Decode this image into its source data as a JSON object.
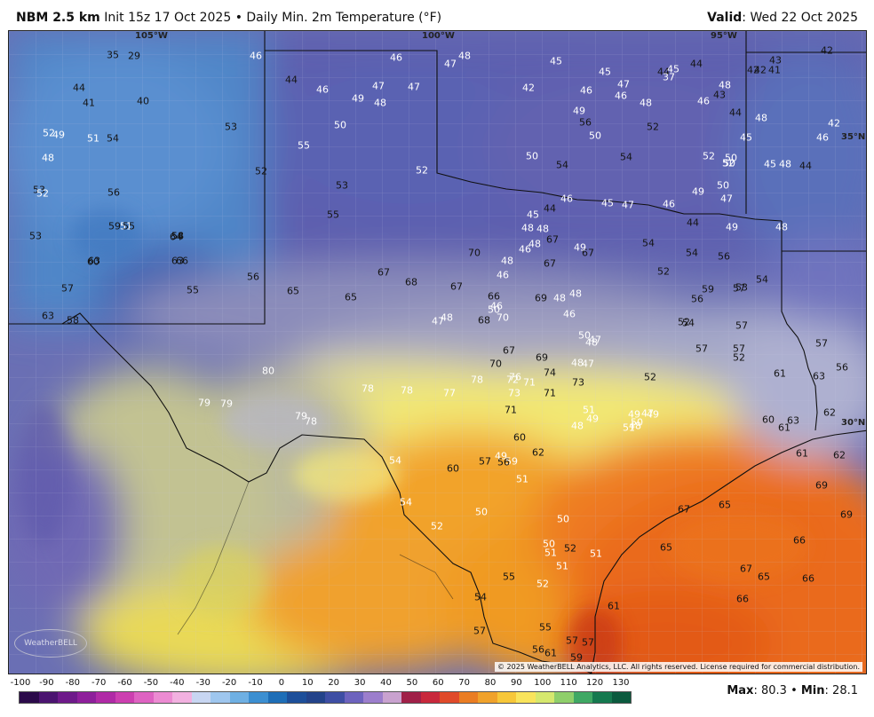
{
  "header": {
    "model": "NBM 2.5 km",
    "init": "Init 15z 17 Oct 2025",
    "field": "Daily Min. 2m Temperature (°F)",
    "bullet": "•",
    "valid_label": "Valid",
    "valid_date": "Wed 22 Oct 2025"
  },
  "map": {
    "grid_labels": [
      "105°W",
      "100°W",
      "95°W",
      "35°N",
      "30°N"
    ],
    "copyright": "© 2025 WeatherBELL Analytics, LLC. All rights reserved. License required for commercial distribution.",
    "logo_text": "WeatherBELL",
    "point_values": [
      {
        "v": "35",
        "c": "k"
      },
      {
        "v": "29",
        "c": "k"
      },
      {
        "v": "46",
        "c": "w"
      },
      {
        "v": "46",
        "c": "w"
      },
      {
        "v": "47",
        "c": "w"
      },
      {
        "v": "48",
        "c": "w"
      },
      {
        "v": "43",
        "c": "k"
      },
      {
        "v": "41",
        "c": "k"
      },
      {
        "v": "42",
        "c": "k"
      },
      {
        "v": "42",
        "c": "k"
      },
      {
        "v": "44",
        "c": "k"
      },
      {
        "v": "41",
        "c": "k"
      },
      {
        "v": "40",
        "c": "k"
      },
      {
        "v": "44",
        "c": "k"
      },
      {
        "v": "46",
        "c": "w"
      },
      {
        "v": "47",
        "c": "w"
      },
      {
        "v": "47",
        "c": "w"
      },
      {
        "v": "49",
        "c": "w"
      },
      {
        "v": "48",
        "c": "w"
      },
      {
        "v": "45",
        "c": "w"
      },
      {
        "v": "45",
        "c": "w"
      },
      {
        "v": "47",
        "c": "w"
      },
      {
        "v": "44",
        "c": "k"
      },
      {
        "v": "45",
        "c": "w"
      },
      {
        "v": "44",
        "c": "k"
      },
      {
        "v": "48",
        "c": "w"
      },
      {
        "v": "37",
        "c": "w"
      },
      {
        "v": "42",
        "c": "w"
      },
      {
        "v": "46",
        "c": "w"
      },
      {
        "v": "46",
        "c": "w"
      },
      {
        "v": "48",
        "c": "w"
      },
      {
        "v": "46",
        "c": "w"
      },
      {
        "v": "43",
        "c": "k"
      },
      {
        "v": "44",
        "c": "k"
      },
      {
        "v": "42",
        "c": "k"
      },
      {
        "v": "48",
        "c": "w"
      },
      {
        "v": "42",
        "c": "w"
      },
      {
        "v": "46",
        "c": "w"
      },
      {
        "v": "44",
        "c": "k"
      },
      {
        "v": "48",
        "c": "w"
      },
      {
        "v": "45",
        "c": "w"
      },
      {
        "v": "45",
        "c": "w"
      },
      {
        "v": "52",
        "c": "w"
      },
      {
        "v": "49",
        "c": "w"
      },
      {
        "v": "48",
        "c": "w"
      },
      {
        "v": "51",
        "c": "w"
      },
      {
        "v": "54",
        "c": "k"
      },
      {
        "v": "53",
        "c": "k"
      },
      {
        "v": "50",
        "c": "w"
      },
      {
        "v": "55",
        "c": "w"
      },
      {
        "v": "53",
        "c": "k"
      },
      {
        "v": "52",
        "c": "k"
      },
      {
        "v": "52",
        "c": "w"
      },
      {
        "v": "50",
        "c": "w"
      },
      {
        "v": "54",
        "c": "k"
      },
      {
        "v": "54",
        "c": "k"
      },
      {
        "v": "52",
        "c": "k"
      },
      {
        "v": "50",
        "c": "w"
      },
      {
        "v": "56",
        "c": "k"
      },
      {
        "v": "49",
        "c": "w"
      },
      {
        "v": "53",
        "c": "k"
      },
      {
        "v": "56",
        "c": "k"
      },
      {
        "v": "59",
        "c": "k"
      },
      {
        "v": "58",
        "c": "k"
      },
      {
        "v": "51",
        "c": "w"
      },
      {
        "v": "54",
        "c": "k"
      },
      {
        "v": "55",
        "c": "k"
      },
      {
        "v": "52",
        "c": "w"
      },
      {
        "v": "53",
        "c": "k"
      },
      {
        "v": "55",
        "c": "k"
      },
      {
        "v": "56",
        "c": "k"
      },
      {
        "v": "55",
        "c": "k"
      },
      {
        "v": "60",
        "c": "k"
      },
      {
        "v": "66",
        "c": "k"
      },
      {
        "v": "63",
        "c": "k"
      },
      {
        "v": "63",
        "c": "k"
      },
      {
        "v": "64",
        "c": "k"
      },
      {
        "v": "57",
        "c": "k"
      },
      {
        "v": "58",
        "c": "k"
      },
      {
        "v": "63",
        "c": "k"
      },
      {
        "v": "65",
        "c": "k"
      },
      {
        "v": "65",
        "c": "k"
      },
      {
        "v": "67",
        "c": "k"
      },
      {
        "v": "68",
        "c": "k"
      },
      {
        "v": "67",
        "c": "k"
      },
      {
        "v": "66",
        "c": "k"
      },
      {
        "v": "70",
        "c": "k"
      },
      {
        "v": "67",
        "c": "k"
      },
      {
        "v": "67",
        "c": "k"
      },
      {
        "v": "67",
        "c": "k"
      },
      {
        "v": "70",
        "c": "w"
      },
      {
        "v": "68",
        "c": "k"
      },
      {
        "v": "69",
        "c": "k"
      },
      {
        "v": "67",
        "c": "k"
      },
      {
        "v": "69",
        "c": "k"
      },
      {
        "v": "70",
        "c": "k"
      },
      {
        "v": "72",
        "c": "w"
      },
      {
        "v": "71",
        "c": "w"
      },
      {
        "v": "73",
        "c": "w"
      },
      {
        "v": "73",
        "c": "k"
      },
      {
        "v": "80",
        "c": "w"
      },
      {
        "v": "79",
        "c": "w"
      },
      {
        "v": "79",
        "c": "w"
      },
      {
        "v": "79",
        "c": "w"
      },
      {
        "v": "78",
        "c": "w"
      },
      {
        "v": "78",
        "c": "w"
      },
      {
        "v": "78",
        "c": "w"
      },
      {
        "v": "77",
        "c": "w"
      },
      {
        "v": "78",
        "c": "w"
      },
      {
        "v": "76",
        "c": "w"
      },
      {
        "v": "74",
        "c": "k"
      },
      {
        "v": "71",
        "c": "k"
      },
      {
        "v": "71",
        "c": "k"
      },
      {
        "v": "60",
        "c": "k"
      },
      {
        "v": "62",
        "c": "k"
      },
      {
        "v": "59",
        "c": "w"
      },
      {
        "v": "60",
        "c": "k"
      },
      {
        "v": "57",
        "c": "k"
      },
      {
        "v": "56",
        "c": "k"
      },
      {
        "v": "54",
        "c": "w"
      },
      {
        "v": "54",
        "c": "w"
      },
      {
        "v": "52",
        "c": "w"
      },
      {
        "v": "50",
        "c": "w"
      },
      {
        "v": "51",
        "c": "w"
      },
      {
        "v": "50",
        "c": "w"
      },
      {
        "v": "50",
        "c": "w"
      },
      {
        "v": "51",
        "c": "w"
      },
      {
        "v": "51",
        "c": "w"
      },
      {
        "v": "52",
        "c": "k"
      },
      {
        "v": "51",
        "c": "w"
      },
      {
        "v": "52",
        "c": "w"
      },
      {
        "v": "54",
        "c": "k"
      },
      {
        "v": "55",
        "c": "k"
      },
      {
        "v": "57",
        "c": "k"
      },
      {
        "v": "56",
        "c": "k"
      },
      {
        "v": "55",
        "c": "k"
      },
      {
        "v": "57",
        "c": "k"
      },
      {
        "v": "57",
        "c": "k"
      },
      {
        "v": "59",
        "c": "k"
      },
      {
        "v": "61",
        "c": "k"
      },
      {
        "v": "61",
        "c": "k"
      },
      {
        "v": "65",
        "c": "k"
      },
      {
        "v": "66",
        "c": "k"
      },
      {
        "v": "65",
        "c": "k"
      },
      {
        "v": "67",
        "c": "k"
      },
      {
        "v": "67",
        "c": "k"
      },
      {
        "v": "65",
        "c": "k"
      },
      {
        "v": "66",
        "c": "k"
      },
      {
        "v": "66",
        "c": "k"
      },
      {
        "v": "69",
        "c": "k"
      },
      {
        "v": "69",
        "c": "k"
      },
      {
        "v": "61",
        "c": "k"
      },
      {
        "v": "62",
        "c": "k"
      },
      {
        "v": "60",
        "c": "k"
      },
      {
        "v": "61",
        "c": "k"
      },
      {
        "v": "63",
        "c": "k"
      },
      {
        "v": "62",
        "c": "k"
      },
      {
        "v": "61",
        "c": "k"
      },
      {
        "v": "63",
        "c": "k"
      },
      {
        "v": "57",
        "c": "k"
      },
      {
        "v": "56",
        "c": "k"
      },
      {
        "v": "57",
        "c": "k"
      },
      {
        "v": "59",
        "c": "k"
      },
      {
        "v": "57",
        "c": "k"
      },
      {
        "v": "56",
        "c": "k"
      },
      {
        "v": "54",
        "c": "k"
      },
      {
        "v": "54",
        "c": "k"
      },
      {
        "v": "52",
        "c": "k"
      },
      {
        "v": "53",
        "c": "k"
      },
      {
        "v": "54",
        "c": "k"
      },
      {
        "v": "56",
        "c": "k"
      },
      {
        "v": "57",
        "c": "k"
      },
      {
        "v": "54",
        "c": "k"
      },
      {
        "v": "57",
        "c": "k"
      },
      {
        "v": "52",
        "c": "k"
      },
      {
        "v": "52",
        "c": "k"
      },
      {
        "v": "52",
        "c": "k"
      },
      {
        "v": "51",
        "c": "w"
      },
      {
        "v": "50",
        "c": "w"
      },
      {
        "v": "49",
        "c": "w"
      },
      {
        "v": "51",
        "c": "w"
      },
      {
        "v": "49",
        "c": "w"
      },
      {
        "v": "49",
        "c": "w"
      },
      {
        "v": "48",
        "c": "w"
      },
      {
        "v": "47",
        "c": "w"
      },
      {
        "v": "49",
        "c": "w"
      },
      {
        "v": "48",
        "c": "w"
      },
      {
        "v": "48",
        "c": "w"
      },
      {
        "v": "47",
        "c": "w"
      },
      {
        "v": "50",
        "c": "w"
      },
      {
        "v": "48",
        "c": "w"
      },
      {
        "v": "47",
        "c": "w"
      },
      {
        "v": "46",
        "c": "w"
      },
      {
        "v": "48",
        "c": "w"
      },
      {
        "v": "48",
        "c": "w"
      },
      {
        "v": "46",
        "c": "w"
      },
      {
        "v": "50",
        "c": "w"
      },
      {
        "v": "48",
        "c": "w"
      },
      {
        "v": "47",
        "c": "w"
      },
      {
        "v": "46",
        "c": "w"
      },
      {
        "v": "48",
        "c": "w"
      },
      {
        "v": "46",
        "c": "w"
      },
      {
        "v": "49",
        "c": "w"
      },
      {
        "v": "48",
        "c": "w"
      },
      {
        "v": "48",
        "c": "w"
      },
      {
        "v": "48",
        "c": "w"
      },
      {
        "v": "45",
        "c": "w"
      },
      {
        "v": "44",
        "c": "k"
      },
      {
        "v": "46",
        "c": "w"
      },
      {
        "v": "45",
        "c": "w"
      },
      {
        "v": "47",
        "c": "w"
      },
      {
        "v": "46",
        "c": "w"
      },
      {
        "v": "44",
        "c": "k"
      },
      {
        "v": "49",
        "c": "w"
      },
      {
        "v": "47",
        "c": "w"
      },
      {
        "v": "48",
        "c": "w"
      },
      {
        "v": "49",
        "c": "w"
      },
      {
        "v": "50",
        "c": "w"
      },
      {
        "v": "50",
        "c": "w"
      },
      {
        "v": "50",
        "c": "w"
      },
      {
        "v": "52",
        "c": "w"
      },
      {
        "v": "52",
        "c": "w"
      }
    ]
  },
  "legend": {
    "ticks": [
      "-100",
      "-90",
      "-80",
      "-70",
      "-60",
      "-50",
      "-40",
      "-30",
      "-20",
      "-10",
      "0",
      "10",
      "20",
      "30",
      "40",
      "50",
      "60",
      "70",
      "80",
      "90",
      "100",
      "110",
      "120",
      "130"
    ],
    "colors": [
      "#2b0a4a",
      "#4b1470",
      "#6e1a8a",
      "#8e1f9b",
      "#b02aa6",
      "#cc3fb0",
      "#de63c2",
      "#ec8bd2",
      "#f2b1e0",
      "#c8d6f2",
      "#9ec6ee",
      "#6fb0e3",
      "#3c8fd1",
      "#1e6eb7",
      "#1d4f9a",
      "#23438a",
      "#3e4ea4",
      "#6d63be",
      "#9c7ecc",
      "#c9a2cf",
      "#a02048",
      "#c8283c",
      "#e04a2a",
      "#ea7d23",
      "#f0a22b",
      "#f7c739",
      "#f9e45c",
      "#d6e86e",
      "#8fcf6b",
      "#3fa864",
      "#15794f",
      "#0b5a3e"
    ],
    "max_label": "Max",
    "max_value": "80.3",
    "bullet": "•",
    "min_label": "Min",
    "min_value": "28.1"
  }
}
